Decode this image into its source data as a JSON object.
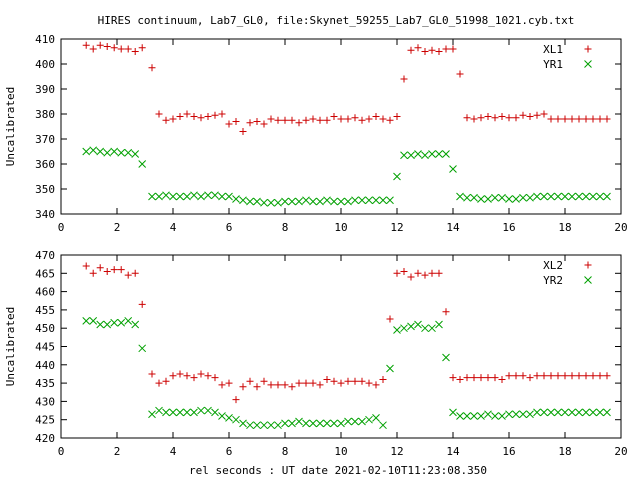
{
  "title": "HIRES continuum, Lab7_GL0, file:Skynet_59255_Lab7_GL0_51998_1021.cyb.txt",
  "xlabel": "rel seconds : UT date 2021-02-10T11:23:08.350",
  "colors": {
    "red": "#cc0000",
    "green": "#00a000",
    "axis": "#000000"
  },
  "chart_data": [
    {
      "type": "scatter",
      "title": "HIRES continuum, Lab7_GL0, file:Skynet_59255_Lab7_GL0_51998_1021.cyb.txt",
      "xlabel": "",
      "ylabel": "Uncalibrated",
      "xlim": [
        0,
        20
      ],
      "ylim": [
        340,
        410
      ],
      "xticks": [
        0,
        2,
        4,
        6,
        8,
        10,
        12,
        14,
        16,
        18,
        20
      ],
      "yticks": [
        340,
        350,
        360,
        370,
        380,
        390,
        400,
        410
      ],
      "legend": "top-right",
      "series": [
        {
          "name": "XL1",
          "marker": "plus",
          "color": "#cc0000",
          "x": [
            0.9,
            1.15,
            1.4,
            1.65,
            1.9,
            2.15,
            2.4,
            2.65,
            2.9,
            3.25,
            3.5,
            3.75,
            4.0,
            4.25,
            4.5,
            4.75,
            5.0,
            5.25,
            5.5,
            5.75,
            6.0,
            6.25,
            6.5,
            6.75,
            7.0,
            7.25,
            7.5,
            7.75,
            8.0,
            8.25,
            8.5,
            8.75,
            9.0,
            9.25,
            9.5,
            9.75,
            10.0,
            10.25,
            10.5,
            10.75,
            11.0,
            11.25,
            11.5,
            11.75,
            12.0,
            12.25,
            12.5,
            12.75,
            13.0,
            13.25,
            13.5,
            13.75,
            14.0,
            14.25,
            14.5,
            14.75,
            15.0,
            15.25,
            15.5,
            15.75,
            16.0,
            16.25,
            16.5,
            16.75,
            17.0,
            17.25,
            17.5,
            17.75,
            18.0,
            18.25,
            18.5,
            18.75,
            19.0,
            19.25,
            19.5
          ],
          "y": [
            407.5,
            406,
            407.5,
            407,
            406.5,
            406,
            406,
            405,
            406.5,
            398.5,
            380,
            377.5,
            378,
            379,
            380,
            379,
            378.5,
            379,
            379.5,
            380,
            376,
            377,
            373,
            376.5,
            377,
            376,
            378,
            377.5,
            377.5,
            377.5,
            376.5,
            377.5,
            378,
            377.5,
            377.5,
            379,
            378,
            378,
            378.5,
            377.5,
            378,
            379,
            378,
            377.5,
            379,
            394,
            405.5,
            406.5,
            405,
            405.5,
            405,
            406,
            406,
            396,
            378.5,
            378,
            378.5,
            379,
            378.5,
            379,
            378.5,
            378.5,
            379.5,
            379,
            379.5,
            380,
            378,
            378,
            378,
            378,
            378,
            378,
            378,
            378,
            378
          ],
          "xs_note": ""
        },
        {
          "name": "YR1",
          "marker": "x",
          "color": "#00a000",
          "x": [
            0.9,
            1.15,
            1.4,
            1.65,
            1.9,
            2.15,
            2.4,
            2.65,
            2.9,
            3.25,
            3.5,
            3.75,
            4.0,
            4.25,
            4.5,
            4.75,
            5.0,
            5.25,
            5.5,
            5.75,
            6.0,
            6.25,
            6.5,
            6.75,
            7.0,
            7.25,
            7.5,
            7.75,
            8.0,
            8.25,
            8.5,
            8.75,
            9.0,
            9.25,
            9.5,
            9.75,
            10.0,
            10.25,
            10.5,
            10.75,
            11.0,
            11.25,
            11.5,
            11.75,
            12.0,
            12.25,
            12.5,
            12.75,
            13.0,
            13.25,
            13.5,
            13.75,
            14.0,
            14.25,
            14.5,
            14.75,
            15.0,
            15.25,
            15.5,
            15.75,
            16.0,
            16.25,
            16.5,
            16.75,
            17.0,
            17.25,
            17.5,
            17.75,
            18.0,
            18.25,
            18.5,
            18.75,
            19.0,
            19.25,
            19.5
          ],
          "y": [
            365,
            365.5,
            365,
            364.5,
            365,
            364.5,
            364.5,
            364,
            360,
            347,
            347,
            347.5,
            347,
            347,
            347,
            347.5,
            347,
            347.5,
            347.5,
            347,
            347,
            346,
            345.5,
            345,
            345,
            344.5,
            344.5,
            344.5,
            345,
            345,
            345,
            345.5,
            345,
            345,
            345.5,
            345,
            345,
            345,
            345.5,
            345.5,
            345.5,
            345.5,
            345.5,
            345.5,
            355,
            363.5,
            363.5,
            364,
            363.5,
            364,
            364,
            364,
            358,
            347,
            346.5,
            346.5,
            346,
            346,
            346.5,
            346.5,
            346,
            346,
            346.5,
            346.5,
            347,
            347,
            347,
            347,
            347,
            347,
            347,
            347,
            347,
            347,
            347
          ]
        }
      ]
    },
    {
      "type": "scatter",
      "title": "",
      "xlabel": "rel seconds : UT date 2021-02-10T11:23:08.350",
      "ylabel": "Uncalibrated",
      "xlim": [
        0,
        20
      ],
      "ylim": [
        420,
        470
      ],
      "xticks": [
        0,
        2,
        4,
        6,
        8,
        10,
        12,
        14,
        16,
        18,
        20
      ],
      "yticks": [
        420,
        425,
        430,
        435,
        440,
        445,
        450,
        455,
        460,
        465,
        470
      ],
      "legend": "top-right",
      "series": [
        {
          "name": "XL2",
          "marker": "plus",
          "color": "#cc0000",
          "x": [
            0.9,
            1.15,
            1.4,
            1.65,
            1.9,
            2.15,
            2.4,
            2.65,
            2.9,
            3.25,
            3.5,
            3.75,
            4.0,
            4.25,
            4.5,
            4.75,
            5.0,
            5.25,
            5.5,
            5.75,
            6.0,
            6.25,
            6.5,
            6.75,
            7.0,
            7.25,
            7.5,
            7.75,
            8.0,
            8.25,
            8.5,
            8.75,
            9.0,
            9.25,
            9.5,
            9.75,
            10.0,
            10.25,
            10.5,
            10.75,
            11.0,
            11.25,
            11.5,
            11.75,
            12.0,
            12.25,
            12.5,
            12.75,
            13.0,
            13.25,
            13.5,
            13.75,
            14.0,
            14.25,
            14.5,
            14.75,
            15.0,
            15.25,
            15.5,
            15.75,
            16.0,
            16.25,
            16.5,
            16.75,
            17.0,
            17.25,
            17.5,
            17.75,
            18.0,
            18.25,
            18.5,
            18.75,
            19.0,
            19.25,
            19.5
          ],
          "y": [
            467,
            465,
            466.5,
            465.5,
            466,
            466,
            464.5,
            465,
            456.5,
            437.5,
            435,
            435.5,
            437,
            437.5,
            437,
            436.5,
            437.5,
            437,
            436.5,
            434.5,
            435,
            430.5,
            434,
            435.5,
            434,
            435.5,
            434.5,
            434.5,
            434.5,
            434,
            435,
            435,
            435,
            434.5,
            436,
            435.5,
            435,
            435.5,
            435.5,
            435.5,
            435,
            434.5,
            436,
            452.5,
            465,
            465.5,
            464,
            465,
            464.5,
            465,
            465,
            454.5,
            436.5,
            436,
            436.5,
            436.5,
            436.5,
            436.5,
            436.5,
            436,
            437,
            437,
            437,
            436.5,
            437,
            437,
            437,
            437,
            437,
            437,
            437,
            437,
            437,
            437,
            437
          ]
        },
        {
          "name": "YR2",
          "marker": "x",
          "color": "#00a000",
          "x": [
            0.9,
            1.15,
            1.4,
            1.65,
            1.9,
            2.15,
            2.4,
            2.65,
            2.9,
            3.25,
            3.5,
            3.75,
            4.0,
            4.25,
            4.5,
            4.75,
            5.0,
            5.25,
            5.5,
            5.75,
            6.0,
            6.25,
            6.5,
            6.75,
            7.0,
            7.25,
            7.5,
            7.75,
            8.0,
            8.25,
            8.5,
            8.75,
            9.0,
            9.25,
            9.5,
            9.75,
            10.0,
            10.25,
            10.5,
            10.75,
            11.0,
            11.25,
            11.5,
            11.75,
            12.0,
            12.25,
            12.5,
            12.75,
            13.0,
            13.25,
            13.5,
            13.75,
            14.0,
            14.25,
            14.5,
            14.75,
            15.0,
            15.25,
            15.5,
            15.75,
            16.0,
            16.25,
            16.5,
            16.75,
            17.0,
            17.25,
            17.5,
            17.75,
            18.0,
            18.25,
            18.5,
            18.75,
            19.0,
            19.25,
            19.5
          ],
          "y": [
            452,
            452,
            451,
            451,
            451.5,
            451.5,
            452,
            451,
            444.5,
            426.5,
            427.5,
            427,
            427,
            427,
            427,
            427,
            427.5,
            427.5,
            427,
            426,
            425.5,
            425,
            424,
            423.5,
            423.5,
            423.5,
            423.5,
            423.5,
            424,
            424,
            424.5,
            424,
            424,
            424,
            424,
            424,
            424,
            424.5,
            424.5,
            424.5,
            425,
            425.5,
            423.5,
            439,
            449.5,
            450,
            450.5,
            451,
            450,
            450,
            451,
            442,
            427,
            426,
            426,
            426,
            426,
            426.5,
            426,
            426,
            426.5,
            426.5,
            426.5,
            426.5,
            427,
            427,
            427,
            427,
            427,
            427,
            427,
            427,
            427,
            427,
            427
          ]
        }
      ]
    }
  ]
}
